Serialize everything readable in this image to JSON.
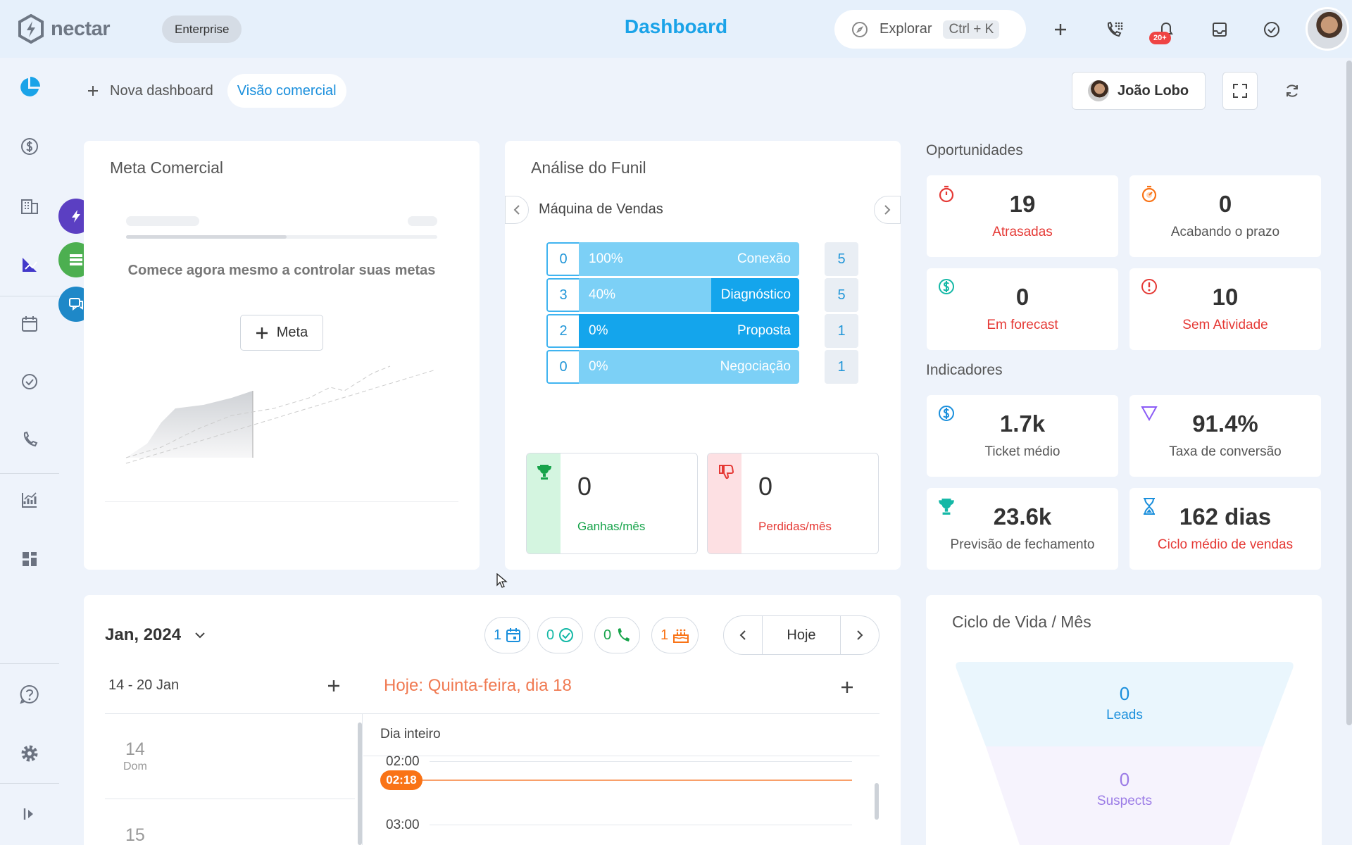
{
  "brand": {
    "name": "nectar",
    "plan": "Enterprise"
  },
  "header": {
    "title": "Dashboard",
    "search_label": "Explorar",
    "search_shortcut": "Ctrl + K",
    "notifications_badge": "20+"
  },
  "tabs": {
    "new_label": "Nova dashboard",
    "active_label": "Visão comercial"
  },
  "user": {
    "name": "João Lobo"
  },
  "meta_card": {
    "title": "Meta Comercial",
    "empty_text": "Comece agora mesmo a controlar suas metas",
    "button_label": "Meta"
  },
  "funnel_card": {
    "title": "Análise do Funil",
    "pipeline": "Máquina de Vendas",
    "stages": [
      {
        "count_left": "0",
        "percent": "100%",
        "name": "Conexão",
        "count_right": "5",
        "fill": 0.0
      },
      {
        "count_left": "3",
        "percent": "40%",
        "name": "Diagnóstico",
        "count_right": "5",
        "fill": 0.4
      },
      {
        "count_left": "2",
        "percent": "0%",
        "name": "Proposta",
        "count_right": "1",
        "fill": 1.0
      },
      {
        "count_left": "0",
        "percent": "0%",
        "name": "Negociação",
        "count_right": "1",
        "fill": 0.0
      }
    ],
    "won": {
      "value": "0",
      "label": "Ganhas/mês"
    },
    "lost": {
      "value": "0",
      "label": "Perdidas/mês"
    }
  },
  "opportunities": {
    "title": "Oportunidades",
    "items": [
      {
        "value": "19",
        "label": "Atrasadas"
      },
      {
        "value": "0",
        "label": "Acabando o prazo"
      },
      {
        "value": "0",
        "label": "Em forecast"
      },
      {
        "value": "10",
        "label": "Sem Atividade"
      }
    ]
  },
  "indicators": {
    "title": "Indicadores",
    "items": [
      {
        "value": "1.7k",
        "label": "Ticket médio"
      },
      {
        "value": "91.4%",
        "label": "Taxa de conversão"
      },
      {
        "value": "23.6k",
        "label": "Previsão de fechamento"
      },
      {
        "value": "162 dias",
        "label": "Ciclo médio de vendas"
      }
    ]
  },
  "calendar": {
    "month": "Jan, 2024",
    "chips": {
      "events": "1",
      "tasks": "0",
      "calls": "0",
      "birthdays": "1"
    },
    "today_button": "Hoje",
    "week_range": "14 - 20 Jan",
    "today_heading": "Hoje: Quinta-feira, dia 18",
    "all_day": "Dia inteiro",
    "days": [
      {
        "num": "14",
        "name": "Dom"
      },
      {
        "num": "15",
        "name": ""
      }
    ],
    "hours": [
      "02:00",
      "03:00"
    ],
    "now_time": "02:18"
  },
  "lifecycle": {
    "title": "Ciclo de Vida / Mês",
    "stages": [
      {
        "value": "0",
        "label": "Leads"
      },
      {
        "value": "0",
        "label": "Suspects"
      }
    ]
  },
  "colors": {
    "accent": "#1aa3e8",
    "red": "#e53935",
    "green": "#16a34a",
    "orange": "#f97316"
  }
}
